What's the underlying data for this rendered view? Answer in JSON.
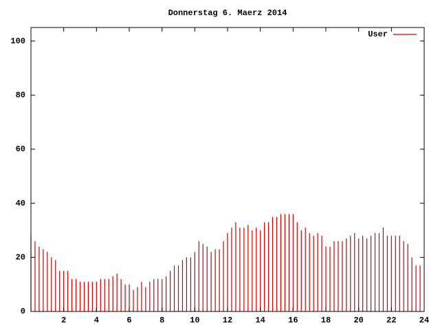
{
  "chart_data": {
    "type": "impulses",
    "title": "Donnerstag 6. Maerz 2014",
    "x": [
      0,
      0.25,
      0.5,
      0.75,
      1,
      1.25,
      1.5,
      1.75,
      2,
      2.25,
      2.5,
      2.75,
      3,
      3.25,
      3.5,
      3.75,
      4,
      4.25,
      4.5,
      4.75,
      5,
      5.25,
      5.5,
      5.75,
      6,
      6.25,
      6.5,
      6.75,
      7,
      7.25,
      7.5,
      7.75,
      8,
      8.25,
      8.5,
      8.75,
      9,
      9.25,
      9.5,
      9.75,
      10,
      10.25,
      10.5,
      10.75,
      11,
      11.25,
      11.5,
      11.75,
      12,
      12.25,
      12.5,
      12.75,
      13,
      13.25,
      13.5,
      13.75,
      14,
      14.25,
      14.5,
      14.75,
      15,
      15.25,
      15.5,
      15.75,
      16,
      16.25,
      16.5,
      16.75,
      17,
      17.25,
      17.5,
      17.75,
      18,
      18.25,
      18.5,
      18.75,
      19,
      19.25,
      19.5,
      19.75,
      20,
      20.25,
      20.5,
      20.75,
      21,
      21.25,
      21.5,
      21.75,
      22,
      22.25,
      22.5,
      22.75,
      23,
      23.25,
      23.5,
      23.75
    ],
    "series": [
      {
        "name": "User",
        "color": "#cc0000",
        "values": [
          28,
          26,
          24,
          23,
          22,
          20,
          19,
          15,
          15,
          15,
          12,
          12,
          11,
          11,
          11,
          11,
          11,
          12,
          12,
          12,
          13,
          14,
          12,
          10,
          10,
          8,
          9,
          11,
          9,
          11,
          12,
          12,
          12,
          13,
          15,
          17,
          17,
          19,
          20,
          20,
          22,
          26,
          25,
          24,
          22,
          23,
          23,
          26,
          29,
          31,
          33,
          31,
          31,
          32,
          30,
          31,
          30,
          33,
          33,
          35,
          35,
          36,
          36,
          36,
          36,
          33,
          30,
          31,
          29,
          28,
          29,
          28,
          24,
          24,
          26,
          26,
          26,
          27,
          28,
          29,
          27,
          28,
          27,
          28,
          29,
          29,
          31,
          28,
          28,
          28,
          28,
          26,
          25,
          20,
          17,
          17
        ]
      }
    ],
    "xlim": [
      0,
      24
    ],
    "xticks": [
      2,
      4,
      6,
      8,
      10,
      12,
      14,
      16,
      18,
      20,
      22,
      24
    ],
    "ylim": [
      0,
      105
    ],
    "yticks": [
      0,
      20,
      40,
      60,
      80,
      100
    ],
    "legend": "upper right"
  }
}
